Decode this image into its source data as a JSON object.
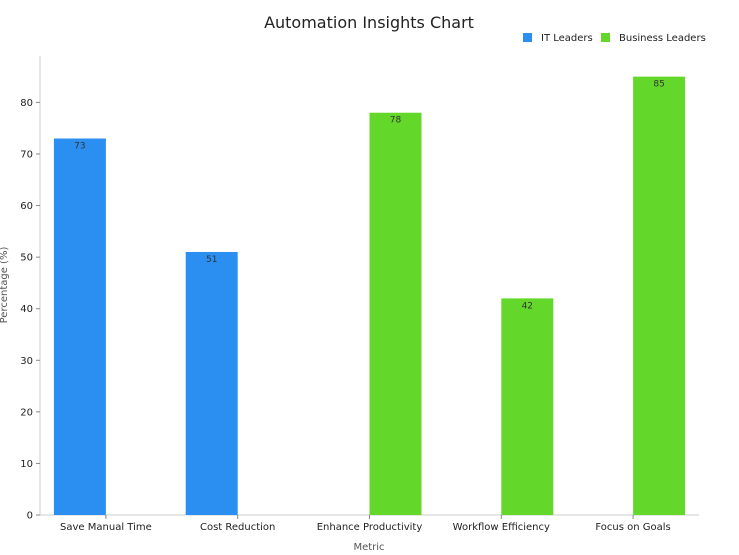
{
  "chart_data": {
    "type": "bar",
    "title": "Automation Insights Chart",
    "xlabel": "Metric",
    "ylabel": "Percentage (%)",
    "categories": [
      "Save Manual Time",
      "Cost Reduction",
      "Enhance Productivity",
      "Workflow Efficiency",
      "Focus on Goals"
    ],
    "series": [
      {
        "name": "IT Leaders",
        "color": "#2b8ff2",
        "values": [
          73,
          51,
          null,
          null,
          null
        ]
      },
      {
        "name": "Business Leaders",
        "color": "#64d82a",
        "values": [
          null,
          null,
          78,
          42,
          85
        ]
      }
    ],
    "ylim": [
      0,
      89
    ],
    "yticks": [
      0,
      10,
      20,
      30,
      40,
      50,
      60,
      70,
      80
    ],
    "grid": false,
    "legend_position": "top-right",
    "data_labels": true
  }
}
